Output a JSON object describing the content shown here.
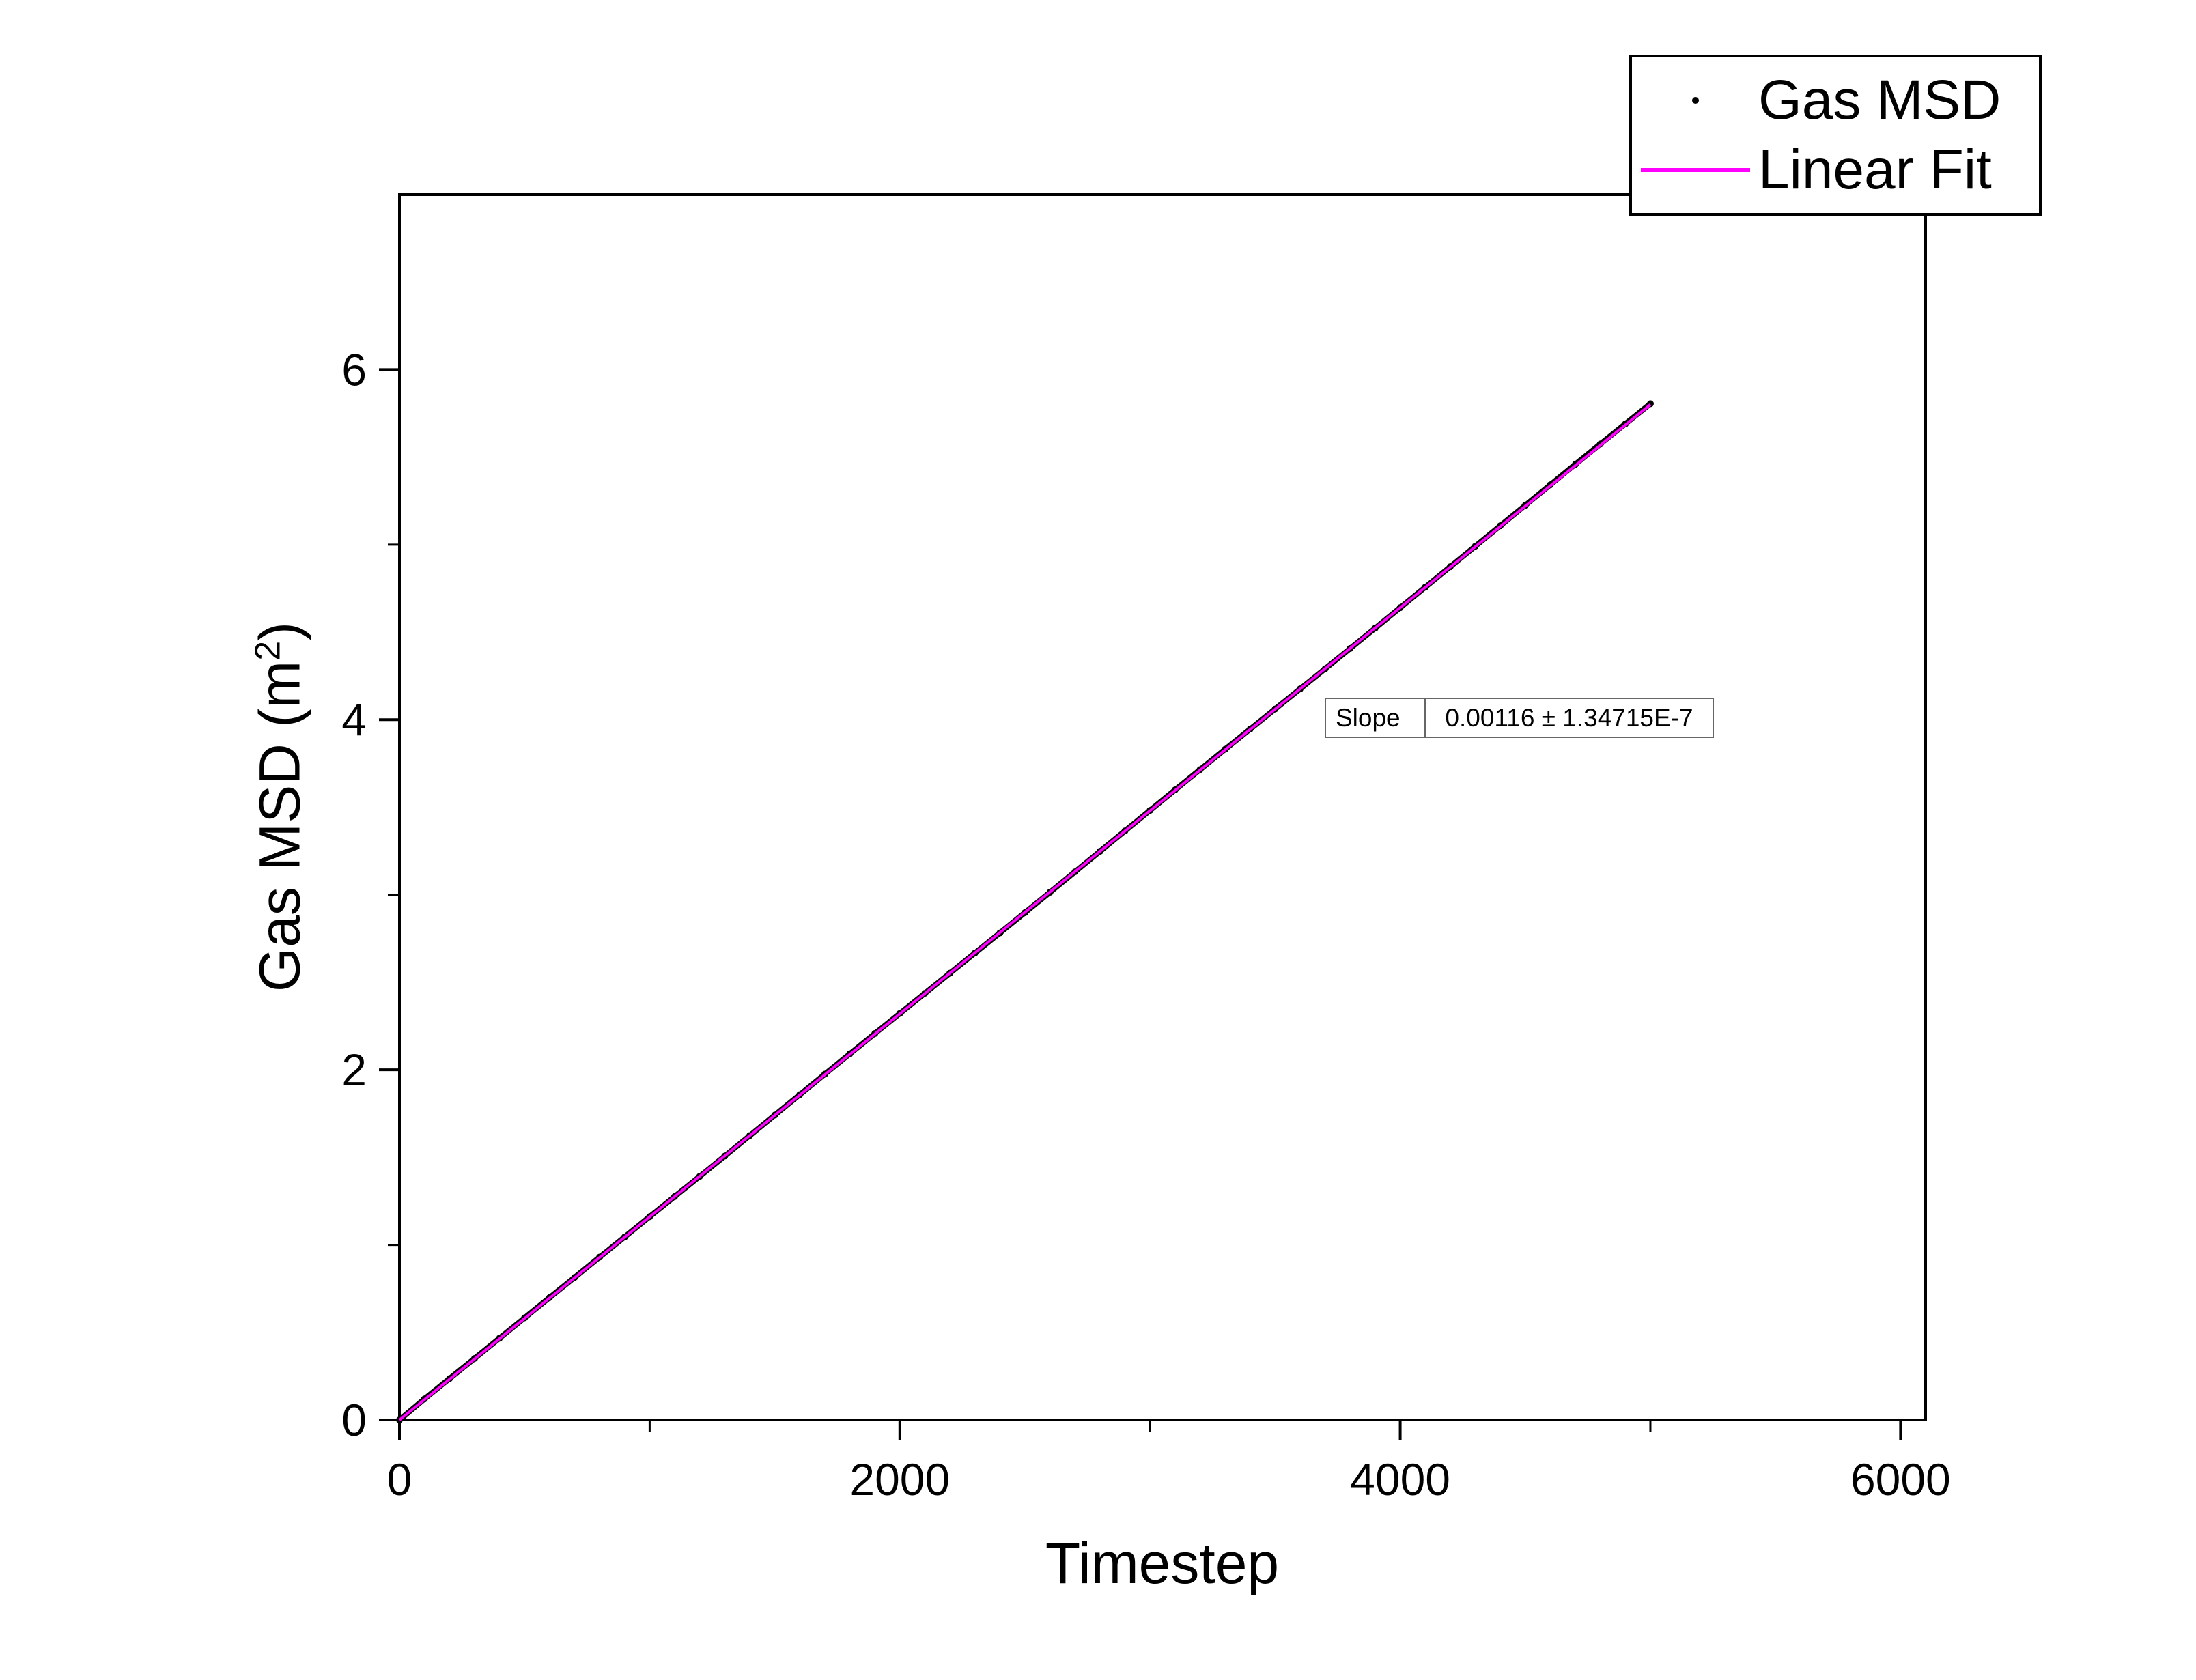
{
  "chart_data": {
    "type": "scatter",
    "title": "",
    "xlabel": "Timestep",
    "ylabel": "Gas MSD (m²)",
    "ylabel_parts": {
      "prefix": "Gas MSD (m",
      "sup": "2",
      "suffix": ")"
    },
    "xlim": [
      0,
      6100
    ],
    "ylim": [
      0,
      7
    ],
    "x_ticks": [
      0,
      2000,
      4000,
      6000
    ],
    "y_ticks": [
      0,
      2,
      4,
      6
    ],
    "x_minor_ticks": [
      1000,
      3000,
      5000
    ],
    "y_minor_ticks": [
      1,
      3,
      5
    ],
    "grid": false,
    "legend_position": "top-right",
    "series": [
      {
        "name": "Gas MSD",
        "type": "scatter",
        "color": "#000000",
        "marker": "dot",
        "x": [
          0,
          100,
          200,
          300,
          400,
          500,
          600,
          700,
          800,
          900,
          1000,
          1100,
          1200,
          1300,
          1400,
          1500,
          1600,
          1700,
          1800,
          1900,
          2000,
          2100,
          2200,
          2300,
          2400,
          2500,
          2600,
          2700,
          2800,
          2900,
          3000,
          3100,
          3200,
          3300,
          3400,
          3500,
          3600,
          3700,
          3800,
          3900,
          4000,
          4100,
          4200,
          4300,
          4400,
          4500,
          4600,
          4700,
          4800,
          4900,
          5000
        ],
        "y": [
          0,
          0.12,
          0.236,
          0.351,
          0.467,
          0.583,
          0.699,
          0.814,
          0.93,
          1.045,
          1.161,
          1.276,
          1.391,
          1.507,
          1.624,
          1.741,
          1.858,
          1.975,
          2.091,
          2.207,
          2.322,
          2.437,
          2.552,
          2.667,
          2.782,
          2.898,
          3.014,
          3.131,
          3.248,
          3.365,
          3.482,
          3.599,
          3.715,
          3.831,
          3.946,
          4.061,
          4.176,
          4.291,
          4.407,
          4.523,
          4.64,
          4.757,
          4.874,
          4.991,
          5.108,
          5.225,
          5.342,
          5.459,
          5.575,
          5.69,
          5.805
        ]
      },
      {
        "name": "Linear Fit",
        "type": "line",
        "color": "#FF00FF",
        "slope": 0.00116,
        "intercept": 0,
        "x_start": 0,
        "x_end": 5000
      }
    ],
    "annotation": {
      "label": "Slope",
      "value": "0.00116 ± 1.34715E-7"
    }
  }
}
